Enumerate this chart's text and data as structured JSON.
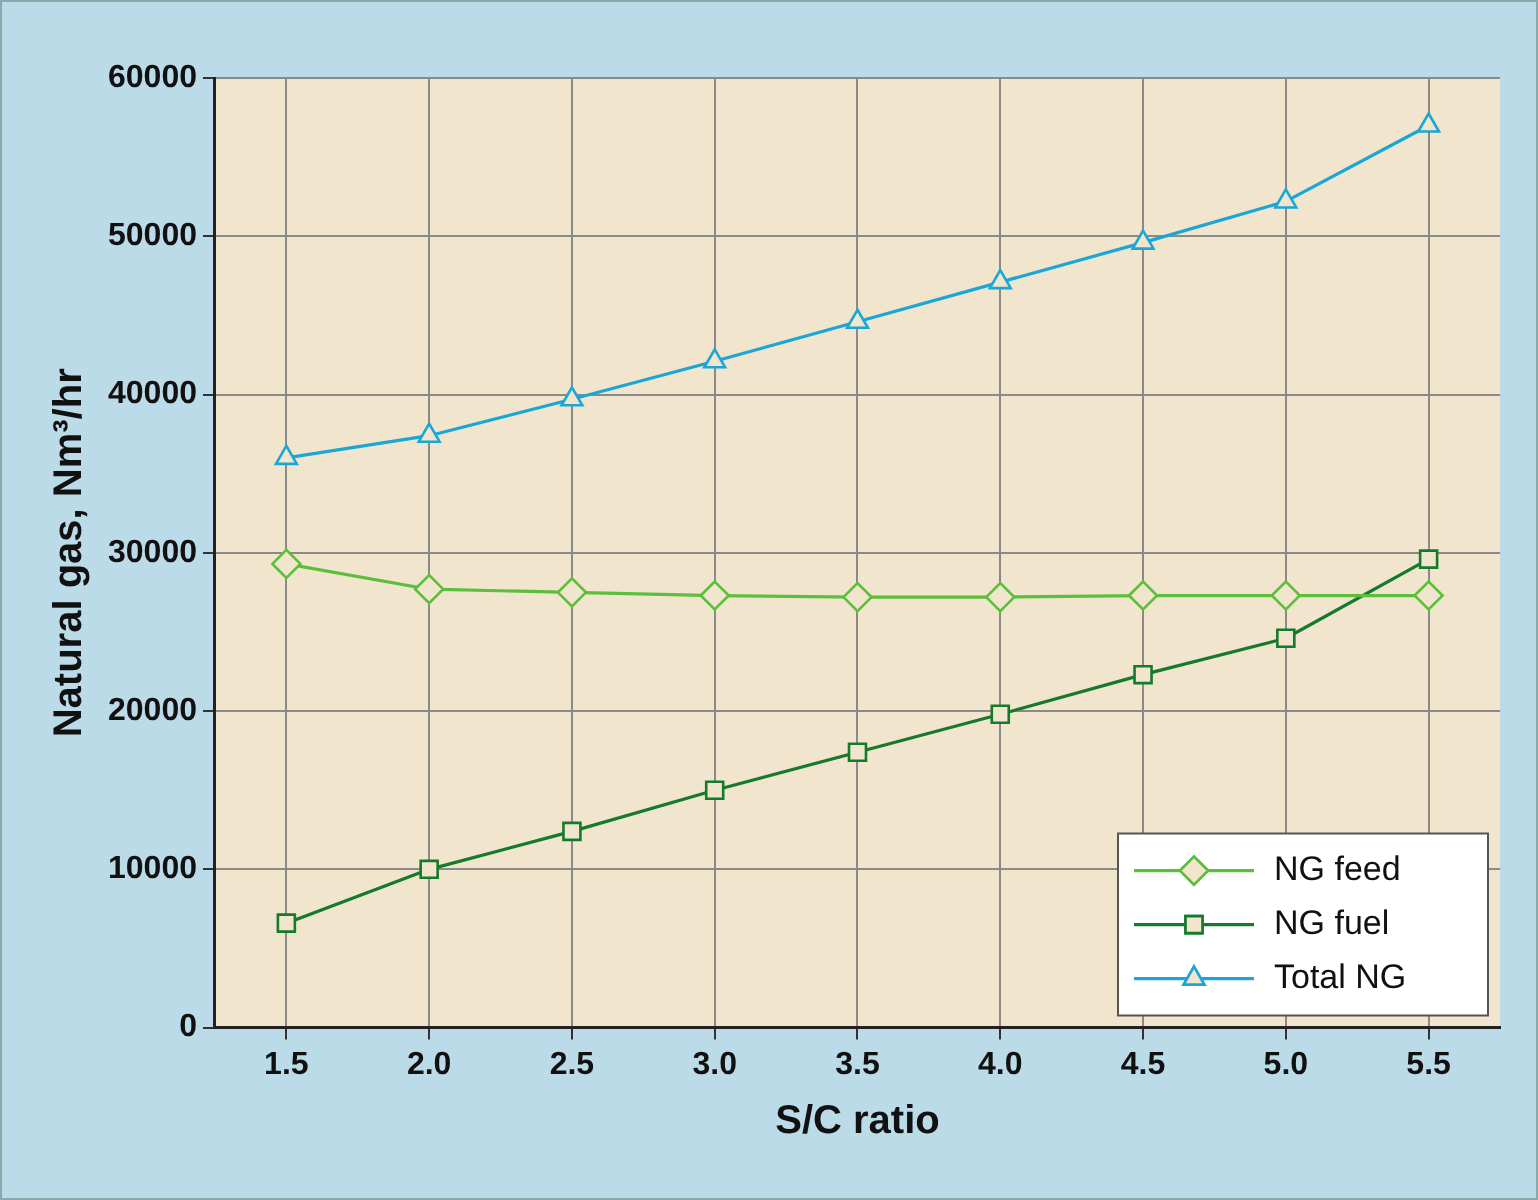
{
  "chart_data": {
    "type": "line",
    "xlabel": "S/C ratio",
    "ylabel": "Natural gas, Nm³/hr",
    "categories": [
      "1.5",
      "2.0",
      "2.5",
      "3.0",
      "3.5",
      "4.0",
      "4.5",
      "5.0",
      "5.5"
    ],
    "series": [
      {
        "name": "NG feed",
        "color": "#5cbf3c",
        "marker": "diamond",
        "values": [
          29300,
          27700,
          27500,
          27300,
          27200,
          27200,
          27300,
          27300,
          27300
        ]
      },
      {
        "name": "NG fuel",
        "color": "#157a2c",
        "marker": "square",
        "values": [
          6600,
          10000,
          12400,
          15000,
          17400,
          19800,
          22300,
          24600,
          29600
        ]
      },
      {
        "name": "Total NG",
        "color": "#1aa7d6",
        "marker": "triangle",
        "values": [
          36000,
          37400,
          39700,
          42100,
          44600,
          47100,
          49600,
          52200,
          57000
        ]
      }
    ],
    "ylim": [
      0,
      60000
    ],
    "yticks": [
      0,
      10000,
      20000,
      30000,
      40000,
      50000,
      60000
    ],
    "grid": true,
    "legend": "bottom right",
    "line_style": "solid"
  }
}
